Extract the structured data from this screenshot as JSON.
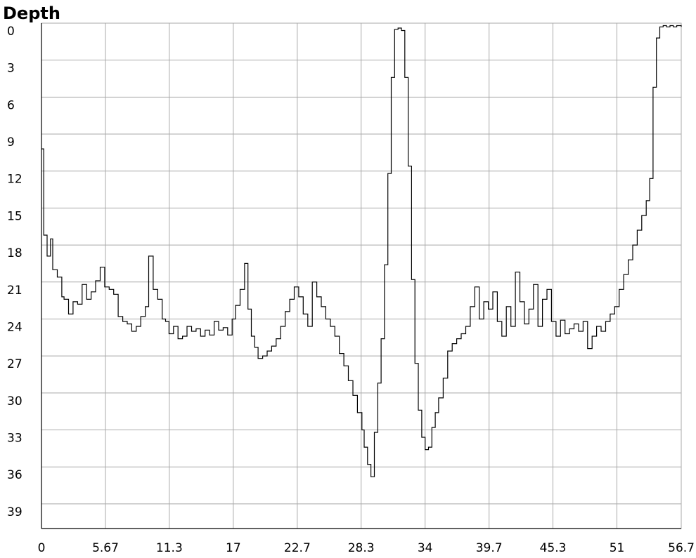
{
  "chart_data": {
    "type": "line",
    "title": "Depth",
    "xlabel": "",
    "ylabel": "",
    "xlim": [
      0,
      56.7
    ],
    "ylim": [
      0,
      41
    ],
    "y_inverted": true,
    "grid": true,
    "x_ticks": [
      "0",
      "5.67",
      "11.3",
      "17",
      "22.7",
      "28.3",
      "34",
      "39.7",
      "45.3",
      "51",
      "56.7"
    ],
    "x_tick_values": [
      0,
      5.67,
      11.33,
      17.0,
      22.67,
      28.33,
      34.0,
      39.67,
      45.33,
      51.0,
      56.7
    ],
    "y_ticks": [
      "0",
      "3",
      "6",
      "9",
      "12",
      "15",
      "18",
      "21",
      "24",
      "27",
      "30",
      "33",
      "36",
      "39"
    ],
    "y_tick_values": [
      0,
      3,
      6,
      9,
      12,
      15,
      18,
      21,
      24,
      27,
      30,
      33,
      36,
      39
    ],
    "series": [
      {
        "color": "#000000",
        "x": [
          0,
          0.2,
          0.5,
          0.8,
          1.0,
          1.4,
          1.8,
          2.0,
          2.4,
          2.8,
          3.2,
          3.6,
          4.0,
          4.4,
          4.8,
          5.2,
          5.6,
          6.0,
          6.4,
          6.8,
          7.2,
          7.6,
          8.0,
          8.4,
          8.8,
          9.2,
          9.5,
          9.9,
          10.3,
          10.7,
          11.0,
          11.3,
          11.7,
          12.1,
          12.5,
          12.9,
          13.3,
          13.7,
          14.1,
          14.5,
          14.9,
          15.3,
          15.7,
          16.1,
          16.5,
          16.9,
          17.2,
          17.6,
          18.0,
          18.3,
          18.6,
          18.9,
          19.2,
          19.6,
          20.0,
          20.4,
          20.8,
          21.2,
          21.6,
          22.0,
          22.4,
          22.8,
          23.2,
          23.6,
          24.0,
          24.4,
          24.8,
          25.2,
          25.6,
          26.0,
          26.4,
          26.8,
          27.2,
          27.6,
          28.0,
          28.4,
          28.6,
          28.9,
          29.2,
          29.5,
          29.8,
          30.1,
          30.4,
          30.7,
          31.0,
          31.3,
          31.6,
          31.9,
          32.2,
          32.5,
          32.8,
          33.1,
          33.4,
          33.7,
          34.0,
          34.3,
          34.6,
          34.9,
          35.2,
          35.6,
          36.0,
          36.4,
          36.8,
          37.2,
          37.6,
          38.0,
          38.4,
          38.8,
          39.2,
          39.6,
          40.0,
          40.4,
          40.8,
          41.2,
          41.6,
          42.0,
          42.4,
          42.8,
          43.2,
          43.6,
          44.0,
          44.4,
          44.8,
          45.2,
          45.6,
          46.0,
          46.4,
          46.8,
          47.2,
          47.6,
          48.0,
          48.4,
          48.8,
          49.2,
          49.6,
          50.0,
          50.4,
          50.8,
          51.2,
          51.6,
          52.0,
          52.4,
          52.8,
          53.2,
          53.6,
          53.9,
          54.2,
          54.5,
          54.8,
          55.1,
          55.4,
          55.7,
          56.0,
          56.3,
          56.7
        ],
        "y": [
          10.2,
          17.2,
          18.9,
          17.5,
          20.0,
          20.6,
          22.2,
          22.4,
          23.6,
          22.6,
          22.8,
          21.2,
          22.4,
          21.8,
          20.9,
          19.8,
          21.4,
          21.6,
          22.0,
          23.8,
          24.2,
          24.4,
          25.0,
          24.6,
          23.8,
          23.0,
          18.9,
          21.6,
          22.4,
          24.0,
          24.2,
          25.2,
          24.6,
          25.6,
          25.4,
          24.6,
          25.0,
          24.8,
          25.4,
          24.9,
          25.3,
          24.2,
          24.9,
          24.7,
          25.3,
          24.0,
          22.9,
          21.6,
          19.5,
          23.2,
          25.4,
          26.3,
          27.2,
          27.0,
          26.6,
          26.2,
          25.6,
          24.6,
          23.4,
          22.4,
          21.4,
          22.2,
          23.6,
          24.6,
          21.0,
          22.2,
          23.0,
          24.0,
          24.6,
          25.4,
          26.8,
          27.8,
          29.0,
          30.2,
          31.6,
          33.0,
          34.4,
          35.8,
          36.8,
          33.2,
          29.2,
          25.6,
          19.6,
          12.2,
          4.4,
          0.5,
          0.4,
          0.6,
          4.4,
          11.6,
          20.8,
          27.6,
          31.4,
          33.6,
          34.6,
          34.4,
          32.8,
          31.6,
          30.4,
          28.8,
          26.6,
          26.0,
          25.6,
          25.2,
          24.6,
          23.0,
          21.4,
          24.0,
          22.6,
          23.2,
          21.8,
          24.2,
          25.4,
          23.0,
          24.6,
          20.2,
          22.6,
          24.4,
          23.2,
          21.2,
          24.6,
          22.4,
          21.6,
          24.2,
          25.4,
          24.1,
          25.2,
          24.8,
          24.4,
          25.0,
          24.2,
          26.4,
          25.4,
          24.6,
          25.0,
          24.2,
          23.6,
          23.0,
          21.6,
          20.4,
          19.2,
          18.0,
          16.8,
          15.6,
          14.4,
          12.6,
          5.2,
          1.2,
          0.3,
          0.2,
          0.3,
          0.2,
          0.3,
          0.2,
          0.3
        ]
      }
    ]
  }
}
